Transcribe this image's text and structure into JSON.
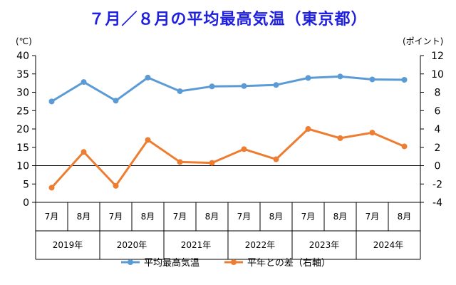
{
  "chart_data": {
    "type": "line",
    "title": "７月／８月の平均最高気温（東京都）",
    "title_color": "#1f1fe0",
    "left_axis": {
      "unit_label": "(℃)",
      "ylim": [
        0,
        40
      ],
      "ticks": [
        "0",
        "5",
        "10",
        "15",
        "20",
        "25",
        "30",
        "35",
        "40"
      ]
    },
    "right_axis": {
      "unit_label": "(ポイント)",
      "ylim": [
        -4,
        12
      ],
      "ticks": [
        "-4",
        "-2",
        "0",
        "2",
        "4",
        "6",
        "8",
        "10",
        "12"
      ]
    },
    "categories": [
      "7月",
      "8月",
      "7月",
      "8月",
      "7月",
      "8月",
      "7月",
      "8月",
      "7月",
      "8月",
      "7月",
      "8月"
    ],
    "years": [
      "2019年",
      "2020年",
      "2021年",
      "2022年",
      "2023年",
      "2024年"
    ],
    "series": [
      {
        "name": "平均最高気温",
        "axis": "left",
        "color": "#5b9bd5",
        "values": [
          27.5,
          32.8,
          27.7,
          34.0,
          30.3,
          31.6,
          31.7,
          32.0,
          33.9,
          34.3,
          33.5,
          33.4
        ]
      },
      {
        "name": "平年との差（右軸）",
        "axis": "right",
        "color": "#ed7d31",
        "values": [
          -2.4,
          1.5,
          -2.2,
          2.8,
          0.4,
          0.3,
          1.8,
          0.7,
          4.0,
          3.0,
          3.6,
          2.1
        ]
      }
    ],
    "legend_position": "bottom",
    "grid": false
  }
}
